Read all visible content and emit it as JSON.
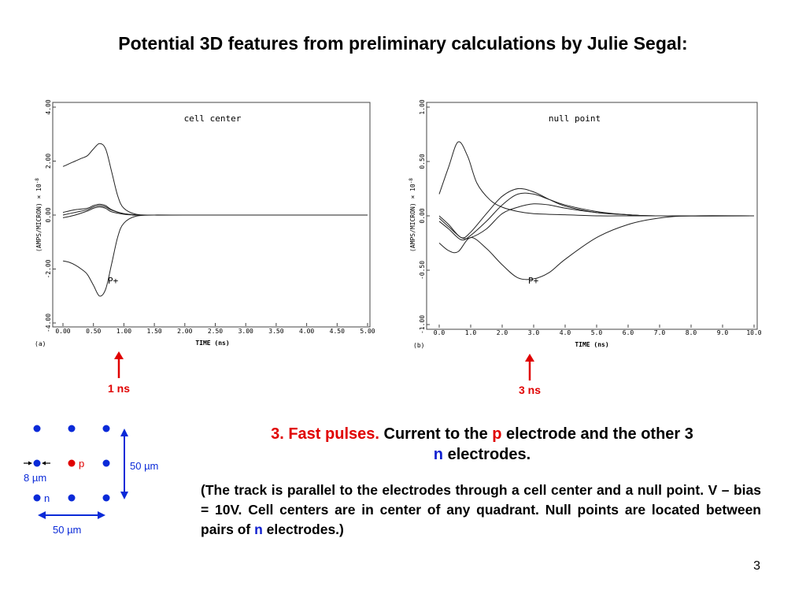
{
  "title": "Potential 3D features from preliminary calculations by Julie Segal:",
  "chart_data": [
    {
      "type": "line",
      "panel": "(a)",
      "title": "cell center",
      "xlabel": "TIME (ns)",
      "ylabel": "(AMPS/MICRON) × 10",
      "ylabel_exp": "-8",
      "xlim": [
        0,
        5
      ],
      "ylim": [
        -4,
        4
      ],
      "x_ticks": [
        "0.00",
        "0.50",
        "1.00",
        "1.50",
        "2.00",
        "2.50",
        "3.00",
        "3.50",
        "4.00",
        "4.50",
        "5.00"
      ],
      "y_ticks": [
        "-4.00",
        "-2.00",
        "0.00",
        "2.00",
        "4.00"
      ],
      "annotation": "P+",
      "series": [
        {
          "x": [
            0,
            0.1,
            0.2,
            0.3,
            0.4,
            0.5,
            0.6,
            0.7,
            0.8,
            0.9,
            1.0,
            1.2,
            1.5,
            2.0,
            5.0
          ],
          "y": [
            1.8,
            1.9,
            2.0,
            2.1,
            2.2,
            2.45,
            2.65,
            2.45,
            1.6,
            0.7,
            0.25,
            0.03,
            0.0,
            0.0,
            0.0
          ]
        },
        {
          "x": [
            0,
            0.1,
            0.2,
            0.3,
            0.4,
            0.5,
            0.6,
            0.7,
            0.8,
            0.9,
            1.0,
            1.2,
            1.5,
            2.0,
            5.0
          ],
          "y": [
            -1.7,
            -1.75,
            -1.85,
            -2.0,
            -2.2,
            -2.6,
            -3.0,
            -2.75,
            -1.8,
            -0.8,
            -0.3,
            -0.04,
            0.0,
            0.0,
            0.0
          ]
        },
        {
          "x": [
            0,
            0.2,
            0.4,
            0.5,
            0.6,
            0.7,
            0.8,
            1.0,
            1.2,
            1.5,
            5.0
          ],
          "y": [
            0.1,
            0.2,
            0.25,
            0.35,
            0.4,
            0.35,
            0.2,
            0.05,
            0.01,
            0.0,
            0.0
          ]
        },
        {
          "x": [
            0,
            0.2,
            0.4,
            0.5,
            0.6,
            0.7,
            0.8,
            1.0,
            1.2,
            1.5,
            5.0
          ],
          "y": [
            0.0,
            0.1,
            0.2,
            0.3,
            0.35,
            0.3,
            0.18,
            0.05,
            0.01,
            0.0,
            0.0
          ]
        },
        {
          "x": [
            0,
            0.2,
            0.4,
            0.5,
            0.6,
            0.7,
            0.8,
            1.0,
            1.2,
            1.5,
            5.0
          ],
          "y": [
            -0.1,
            0.0,
            0.15,
            0.25,
            0.3,
            0.25,
            0.12,
            0.03,
            0.0,
            0.0,
            0.0
          ]
        }
      ]
    },
    {
      "type": "line",
      "panel": "(b)",
      "title": "null point",
      "xlabel": "TIME (ns)",
      "ylabel": "(AMPS/MICRON) × 10",
      "ylabel_exp": "-8",
      "xlim": [
        0,
        10
      ],
      "ylim": [
        -1,
        1
      ],
      "x_ticks": [
        "0.0",
        "1.0",
        "2.0",
        "3.0",
        "4.0",
        "5.0",
        "6.0",
        "7.0",
        "8.0",
        "9.0",
        "10.0"
      ],
      "y_ticks": [
        "-1.00",
        "-0.50",
        "0.00",
        "0.50",
        "1.00"
      ],
      "annotation": "P+",
      "series": [
        {
          "x": [
            0,
            0.3,
            0.6,
            0.9,
            1.2,
            1.6,
            2.0,
            2.5,
            3.0,
            4.0,
            5.0,
            6.0,
            7.0,
            10.0
          ],
          "y": [
            0.2,
            0.45,
            0.68,
            0.55,
            0.3,
            0.15,
            0.08,
            0.04,
            0.02,
            0.01,
            0.0,
            0.0,
            0.0,
            0.0
          ]
        },
        {
          "x": [
            0,
            0.3,
            0.6,
            1.0,
            1.5,
            2.0,
            2.5,
            3.0,
            3.5,
            4.0,
            5.0,
            6.0,
            7.0,
            8.0,
            10.0
          ],
          "y": [
            -0.25,
            -0.32,
            -0.33,
            -0.2,
            -0.3,
            -0.45,
            -0.57,
            -0.58,
            -0.52,
            -0.4,
            -0.2,
            -0.08,
            -0.02,
            0.0,
            0.0
          ]
        },
        {
          "x": [
            0,
            0.3,
            0.7,
            1.0,
            1.5,
            2.0,
            2.5,
            3.0,
            3.5,
            4.0,
            5.0,
            6.0,
            7.0,
            10.0
          ],
          "y": [
            0.0,
            -0.08,
            -0.2,
            -0.15,
            0.02,
            0.18,
            0.25,
            0.22,
            0.15,
            0.09,
            0.03,
            0.01,
            0.0,
            0.0
          ]
        },
        {
          "x": [
            0,
            0.3,
            0.7,
            1.0,
            1.5,
            2.0,
            2.5,
            3.0,
            3.5,
            4.0,
            5.0,
            6.0,
            7.0,
            10.0
          ],
          "y": [
            -0.05,
            -0.12,
            -0.22,
            -0.18,
            -0.05,
            0.1,
            0.2,
            0.2,
            0.15,
            0.1,
            0.04,
            0.01,
            0.0,
            0.0
          ]
        },
        {
          "x": [
            0,
            0.3,
            0.7,
            1.0,
            1.5,
            2.0,
            2.5,
            3.0,
            3.5,
            4.0,
            5.0,
            6.0,
            7.0,
            10.0
          ],
          "y": [
            -0.02,
            -0.1,
            -0.2,
            -0.2,
            -0.12,
            0.02,
            0.08,
            0.11,
            0.1,
            0.07,
            0.03,
            0.01,
            0.0,
            0.0
          ]
        }
      ]
    }
  ],
  "markers": {
    "a": {
      "label": "1 ns"
    },
    "b": {
      "label": "3 ns"
    }
  },
  "diagram": {
    "p_label": "p",
    "n_label": "n",
    "gap_label": "8 µm",
    "vertical_label": "50 µm",
    "horizontal_label": "50 µm"
  },
  "heading": {
    "prefix": "3. Fast pulses.",
    "t1": " Current to the ",
    "p": "p",
    "t2": " electrode and the other 3",
    "n": "n",
    "t3": " electrodes."
  },
  "paragraph": {
    "t1": "(The track is parallel to the electrodes through a cell center and a null point.  V – bias = 10V.  Cell centers are in center of any quadrant.  Null points are located between pairs of ",
    "n": "n",
    "t2": " electrodes.)"
  },
  "page_number": "3",
  "colors": {
    "red": "#e00000",
    "blue": "#1020d0",
    "electrode_blue": "#0a2ad8",
    "electrode_red": "#e00000"
  }
}
